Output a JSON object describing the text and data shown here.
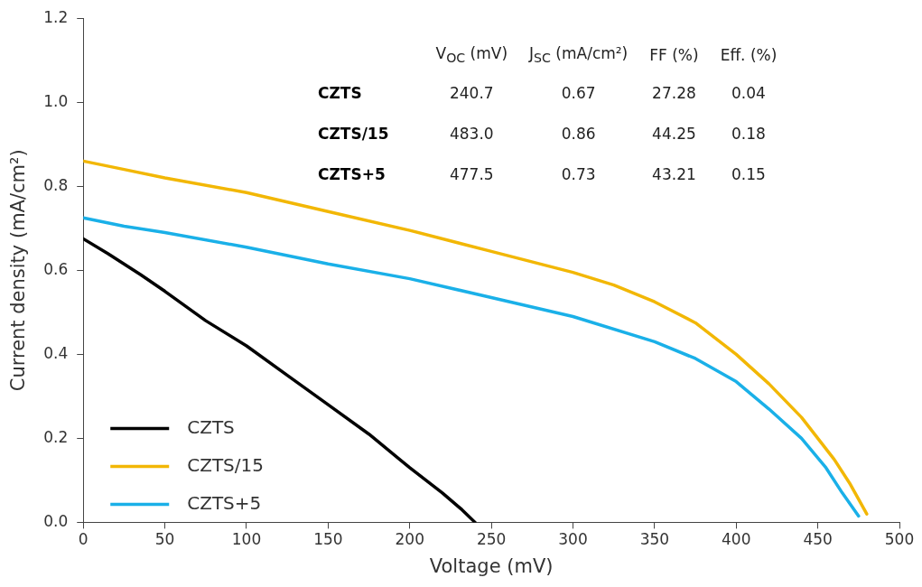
{
  "chart_data": {
    "type": "line",
    "xlabel": "Voltage (mV)",
    "ylabel": "Current density (mA/cm²)",
    "xlim": [
      0,
      500
    ],
    "xticks": [
      0,
      50,
      100,
      150,
      200,
      250,
      300,
      350,
      400,
      450,
      500
    ],
    "ylim": [
      0,
      1.2
    ],
    "yticks": [
      {
        "value": 0,
        "label": "0.0"
      },
      {
        "value": 0.2,
        "label": "0.2"
      },
      {
        "value": 0.4,
        "label": "0.4"
      },
      {
        "value": 0.6,
        "label": "0.6"
      },
      {
        "value": 0.8,
        "label": "0.8"
      },
      {
        "value": 1,
        "label": "1.0"
      },
      {
        "value": 1.2,
        "label": "1.2"
      }
    ],
    "grid": false,
    "legend": "bottom left",
    "marker": "none",
    "line_style": "solid",
    "series": [
      {
        "name": "CZTS",
        "color": "#000000",
        "x": [
          0,
          15,
          35,
          50,
          75,
          100,
          125,
          150,
          175,
          200,
          220,
          232,
          240
        ],
        "values": [
          0.675,
          0.64,
          0.59,
          0.55,
          0.48,
          0.42,
          0.35,
          0.28,
          0.21,
          0.13,
          0.07,
          0.03,
          0.0
        ]
      },
      {
        "name": "CZTS/15",
        "color": "#f2b705",
        "x": [
          0,
          25,
          50,
          100,
          150,
          200,
          250,
          300,
          325,
          350,
          375,
          400,
          420,
          440,
          460,
          470,
          480
        ],
        "values": [
          0.86,
          0.84,
          0.82,
          0.785,
          0.74,
          0.695,
          0.645,
          0.595,
          0.565,
          0.525,
          0.475,
          0.4,
          0.33,
          0.25,
          0.15,
          0.09,
          0.02
        ]
      },
      {
        "name": "CZTS+5",
        "color": "#1ab0e8",
        "x": [
          0,
          25,
          50,
          100,
          150,
          200,
          250,
          300,
          350,
          375,
          400,
          420,
          440,
          455,
          465,
          475
        ],
        "values": [
          0.725,
          0.705,
          0.69,
          0.655,
          0.615,
          0.58,
          0.535,
          0.49,
          0.43,
          0.39,
          0.335,
          0.27,
          0.2,
          0.13,
          0.07,
          0.015
        ]
      }
    ],
    "annotations": [
      "V$_{OC}$ (mV)",
      "J$_{SC}$ (mA/cm²)",
      "FF (%)",
      "Eff. (%)",
      "CZTS",
      "240.7",
      "0.67",
      "27.28",
      "0.04",
      "CZTS/15",
      "483.0",
      "0.86",
      "44.25",
      "0.18",
      "CZTS+5",
      "477.5",
      "0.73",
      "43.21",
      "0.15"
    ]
  }
}
